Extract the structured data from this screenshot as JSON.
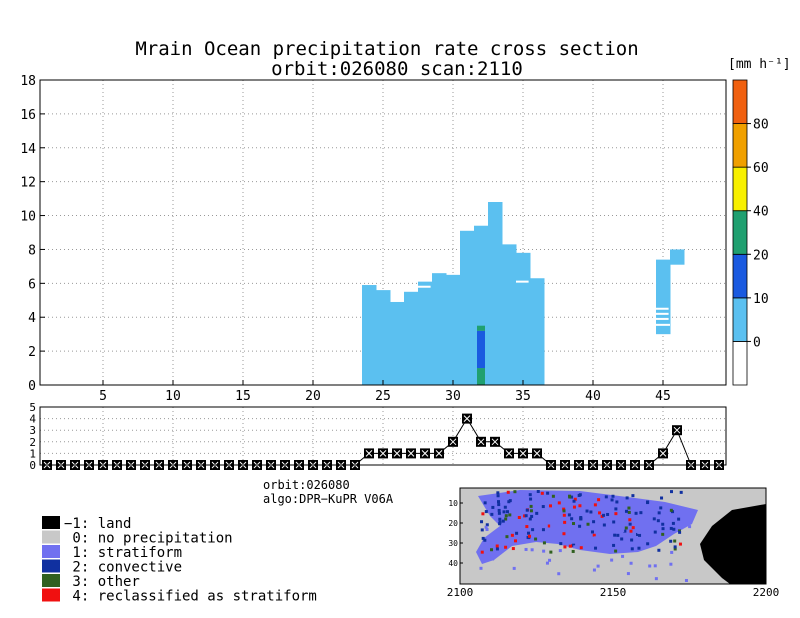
{
  "main_chart": {
    "title_line1": "Mrain Ocean precipitation rate cross section",
    "title_line2": "orbit:026080    scan:2110",
    "x_ticks": [
      5,
      10,
      15,
      20,
      25,
      30,
      35,
      40,
      45
    ],
    "y_ticks": [
      0,
      2,
      4,
      6,
      8,
      10,
      12,
      14,
      16,
      18
    ],
    "xlim": [
      0.5,
      49.5
    ],
    "ylim": [
      0,
      18
    ],
    "grid": true
  },
  "colorbar": {
    "unit_label": "[mm h⁻¹]",
    "tick_labels": [
      "0",
      "10",
      "20",
      "40",
      "60",
      "80"
    ],
    "colors": [
      "#ffffff",
      "#5bc0f0",
      "#1a5ae0",
      "#20a070",
      "#f8f000",
      "#f0a000",
      "#f06010"
    ]
  },
  "type_chart": {
    "y_ticks": [
      0,
      1,
      2,
      3,
      4,
      5
    ],
    "ylim": [
      0,
      5
    ]
  },
  "legend": {
    "info_orbit": "orbit:026080",
    "info_algo": "algo:DPR−KuPR V06A",
    "items": [
      {
        "label": "−1: land",
        "color": "#000000"
      },
      {
        "label": " 0: no precipitation",
        "color": "#c8c8c8"
      },
      {
        "label": " 1: stratiform",
        "color": "#7070f0"
      },
      {
        "label": " 2: convective",
        "color": "#1030a0"
      },
      {
        "label": " 3: other",
        "color": "#306020"
      },
      {
        "label": " 4: reclassified as stratiform",
        "color": "#f01010"
      }
    ]
  },
  "map": {
    "x_ticks": [
      "2100",
      "2150",
      "2200"
    ],
    "y_ticks": [
      "10",
      "20",
      "30",
      "40"
    ],
    "colors": {
      "land": "#000000",
      "none": "#c8c8c8",
      "strat": "#7070f0",
      "conv": "#1030a0",
      "other": "#306020",
      "reclass": "#f01010"
    }
  },
  "chart_data": [
    {
      "type": "bar",
      "title": "Mrain Ocean precipitation rate cross section",
      "subtitle": "orbit:026080    scan:2110",
      "xlabel": "",
      "ylabel": "",
      "xlim": [
        0.5,
        49.5
      ],
      "ylim": [
        0,
        18
      ],
      "columns": [
        {
          "x": 24,
          "top": 5.9
        },
        {
          "x": 25,
          "top": 5.6
        },
        {
          "x": 26,
          "top": 4.9
        },
        {
          "x": 27,
          "top": 5.5
        },
        {
          "x": 28,
          "top": 6.1
        },
        {
          "x": 29,
          "top": 6.6
        },
        {
          "x": 30,
          "top": 6.5
        },
        {
          "x": 31,
          "top": 9.1
        },
        {
          "x": 32,
          "top": 9.4
        },
        {
          "x": 33,
          "top": 10.8
        },
        {
          "x": 34,
          "top": 8.3
        },
        {
          "x": 35,
          "top": 7.8
        },
        {
          "x": 36,
          "top": 6.3
        },
        {
          "x": 45,
          "top": 7.4,
          "bottom": 3.0
        },
        {
          "x": 46,
          "top": 8.0,
          "bottom": 7.1
        }
      ],
      "segments": [
        {
          "x": 32,
          "from": 0,
          "to": 1,
          "rate_class": "20-40"
        },
        {
          "x": 32,
          "from": 1,
          "to": 3.2,
          "rate_class": "10-20"
        },
        {
          "x": 32,
          "from": 3.2,
          "to": 3.5,
          "rate_class": "20-40"
        }
      ]
    },
    {
      "type": "line",
      "x": [
        1,
        2,
        3,
        4,
        5,
        6,
        7,
        8,
        9,
        10,
        11,
        12,
        13,
        14,
        15,
        16,
        17,
        18,
        19,
        20,
        21,
        22,
        23,
        24,
        25,
        26,
        27,
        28,
        29,
        30,
        31,
        32,
        33,
        34,
        35,
        36,
        37,
        38,
        39,
        40,
        41,
        42,
        43,
        44,
        45,
        46,
        47,
        48,
        49
      ],
      "values": [
        0,
        0,
        0,
        0,
        0,
        0,
        0,
        0,
        0,
        0,
        0,
        0,
        0,
        0,
        0,
        0,
        0,
        0,
        0,
        0,
        0,
        0,
        0,
        1,
        1,
        1,
        1,
        1,
        1,
        2,
        4,
        2,
        2,
        1,
        1,
        1,
        0,
        0,
        0,
        0,
        0,
        0,
        0,
        0,
        1,
        3,
        0,
        0,
        0
      ],
      "ylim": [
        0,
        5
      ]
    }
  ]
}
